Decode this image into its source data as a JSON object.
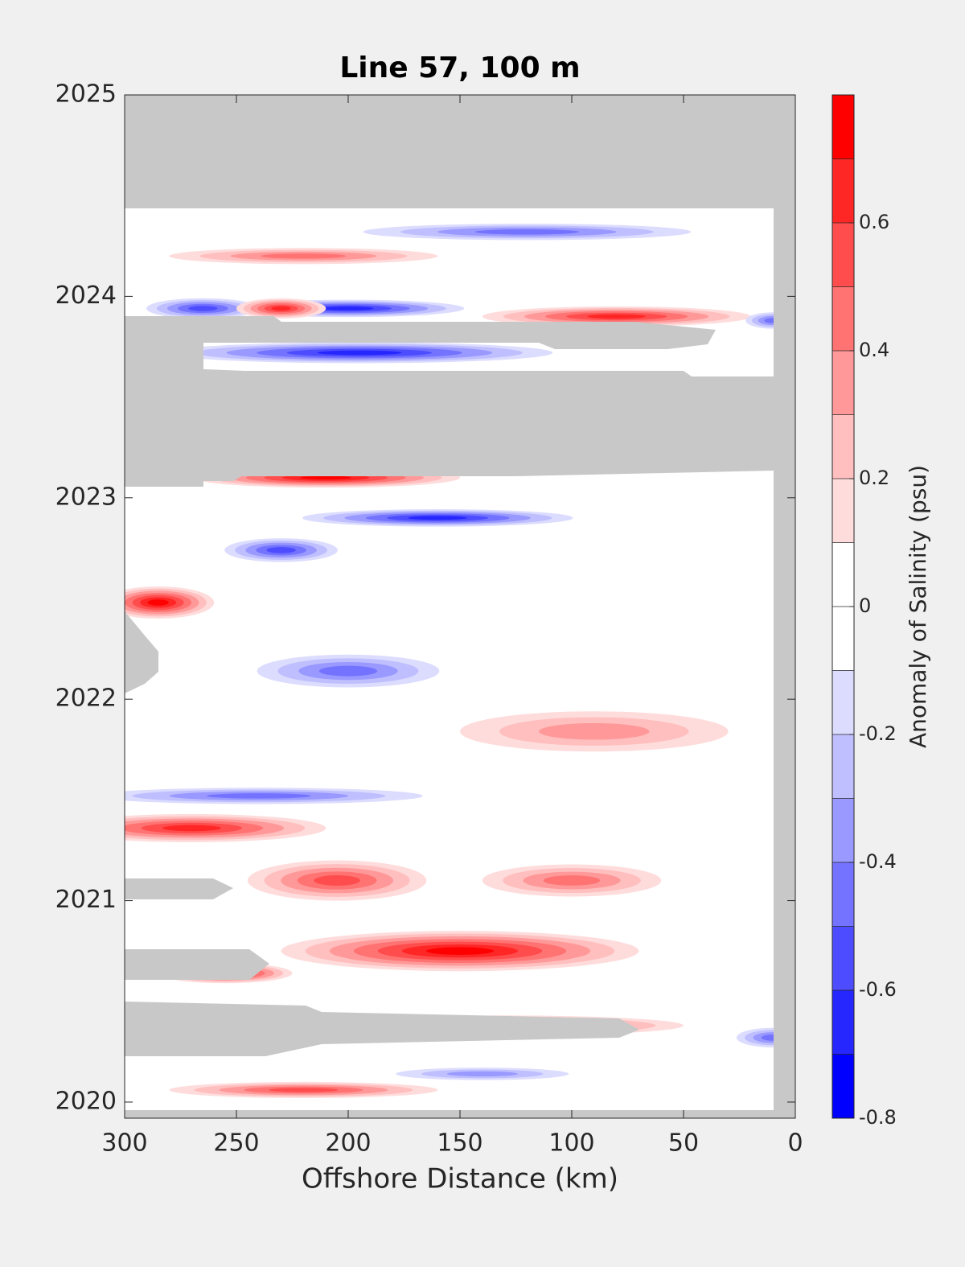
{
  "chart_data": {
    "type": "contour",
    "title": "Line 57, 100 m",
    "xlabel": "Offshore Distance (km)",
    "colorbar_label": "Anomaly of Salinity (psu)",
    "xlim": [
      300,
      0
    ],
    "xticks": [
      300,
      250,
      200,
      150,
      100,
      50,
      0
    ],
    "ylim": [
      2019.92,
      2025
    ],
    "yticks": [
      2020,
      2021,
      2022,
      2023,
      2024,
      2025
    ],
    "levels": [
      -0.8,
      -0.7,
      -0.6,
      -0.5,
      -0.4,
      -0.3,
      -0.2,
      -0.1,
      0,
      0.1,
      0.2,
      0.3,
      0.4,
      0.5,
      0.6,
      0.7,
      0.8
    ],
    "colors": [
      "#0000ff",
      "#2626ff",
      "#4d4dff",
      "#7373ff",
      "#9999ff",
      "#bfbfff",
      "#dcdcff",
      "#ffffff",
      "#ffffff",
      "#ffdcdc",
      "#ffbfbf",
      "#ff9999",
      "#ff7373",
      "#ff4d4d",
      "#ff2626",
      "#ff0000"
    ],
    "cticks": [
      -0.8,
      -0.6,
      -0.4,
      -0.2,
      0,
      0.2,
      0.4,
      0.6
    ],
    "features": [
      {
        "distance": 150,
        "year": 2020.75,
        "width": 160,
        "height": 0.2,
        "value": 0.75
      },
      {
        "distance": 205,
        "year": 2021.1,
        "width": 80,
        "height": 0.2,
        "value": 0.55
      },
      {
        "distance": 100,
        "year": 2021.1,
        "width": 80,
        "height": 0.16,
        "value": 0.4
      },
      {
        "distance": 270,
        "year": 2021.36,
        "width": 120,
        "height": 0.14,
        "value": 0.6
      },
      {
        "distance": 240,
        "year": 2021.52,
        "width": 180,
        "height": 0.1,
        "value": -0.5
      },
      {
        "distance": 90,
        "year": 2021.84,
        "width": 120,
        "height": 0.2,
        "value": 0.35
      },
      {
        "distance": 200,
        "year": 2022.14,
        "width": 100,
        "height": 0.2,
        "value": -0.5
      },
      {
        "distance": 285,
        "year": 2022.48,
        "width": 50,
        "height": 0.16,
        "value": 0.7
      },
      {
        "distance": 160,
        "year": 2022.9,
        "width": 140,
        "height": 0.1,
        "value": -0.65
      },
      {
        "distance": 230,
        "year": 2022.74,
        "width": 60,
        "height": 0.14,
        "value": -0.55
      },
      {
        "distance": 210,
        "year": 2023.1,
        "width": 120,
        "height": 0.1,
        "value": 0.8
      },
      {
        "distance": 195,
        "year": 2023.72,
        "width": 200,
        "height": 0.12,
        "value": -0.65
      },
      {
        "distance": 200,
        "year": 2023.94,
        "width": 120,
        "height": 0.1,
        "value": -0.7
      },
      {
        "distance": 265,
        "year": 2023.94,
        "width": 60,
        "height": 0.12,
        "value": -0.6
      },
      {
        "distance": 230,
        "year": 2023.94,
        "width": 40,
        "height": 0.1,
        "value": 0.6
      },
      {
        "distance": 80,
        "year": 2023.9,
        "width": 120,
        "height": 0.1,
        "value": 0.65
      },
      {
        "distance": 220,
        "year": 2024.2,
        "width": 120,
        "height": 0.08,
        "value": 0.45
      },
      {
        "distance": 120,
        "year": 2024.32,
        "width": 180,
        "height": 0.1,
        "value": -0.5
      },
      {
        "distance": 130,
        "year": 2020.38,
        "width": 160,
        "height": 0.1,
        "value": 0.65
      },
      {
        "distance": 220,
        "year": 2020.06,
        "width": 120,
        "height": 0.08,
        "value": 0.5
      },
      {
        "distance": 10,
        "year": 2020.32,
        "width": 40,
        "height": 0.12,
        "value": -0.5
      },
      {
        "distance": 140,
        "year": 2020.14,
        "width": 100,
        "height": 0.08,
        "value": -0.35
      },
      {
        "distance": 255,
        "year": 2020.64,
        "width": 60,
        "height": 0.1,
        "value": 0.7
      },
      {
        "distance": 10,
        "year": 2023.88,
        "width": 30,
        "height": 0.1,
        "value": -0.5
      }
    ]
  }
}
